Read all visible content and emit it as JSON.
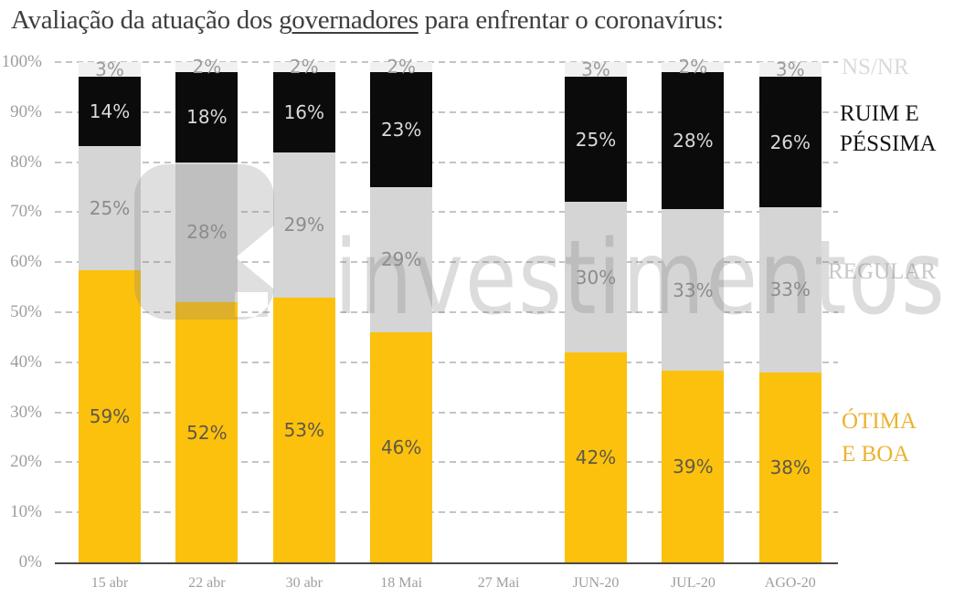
{
  "title": {
    "prefix": "Avaliação da atuação dos ",
    "highlight": "governadores",
    "suffix": " para enfrentar o coronavírus:"
  },
  "watermark": {
    "text": "investimentos",
    "logo": "play-back-rounded-square"
  },
  "chart_data": {
    "type": "bar",
    "stacked": true,
    "title": "Avaliação da atuação dos governadores para enfrentar o coronavírus:",
    "categories": [
      "15 abr",
      "22 abr",
      "30 abr",
      "18 Mai",
      "27 Mai",
      "JUN-20",
      "JUL-20",
      "AGO-20"
    ],
    "series": [
      {
        "name": "ÓTIMA E BOA",
        "color": "#FCC10D",
        "label_color": "#5E584A",
        "values": [
          59,
          52,
          53,
          46,
          null,
          42,
          39,
          38
        ]
      },
      {
        "name": "REGULAR",
        "color": "#D5D5D5",
        "label_color": "#8C8C8C",
        "values": [
          25,
          28,
          29,
          29,
          null,
          30,
          33,
          33
        ]
      },
      {
        "name": "RUIM E PÉSSIMA",
        "color": "#0B0B0B",
        "label_color": "#D9D9D9",
        "values": [
          14,
          18,
          16,
          23,
          null,
          25,
          28,
          26
        ]
      },
      {
        "name": "NS/NR",
        "color": "#F1F1F1",
        "label_color": "#9B9B9B",
        "values": [
          3,
          2,
          2,
          2,
          null,
          3,
          2,
          3
        ]
      }
    ],
    "value_suffix": "%",
    "ylim": [
      0,
      100
    ],
    "yticks": [
      "0%",
      "10%",
      "20%",
      "30%",
      "40%",
      "50%",
      "60%",
      "70%",
      "80%",
      "90%",
      "100%"
    ],
    "grid": "horizontal-dashed",
    "legend_position": "right"
  },
  "legend": {
    "items": [
      {
        "lines": [
          "NS/NR"
        ],
        "color": "#DADADA"
      },
      {
        "lines": [
          "RUIM E",
          "PÉSSIMA"
        ],
        "color": "#141414"
      },
      {
        "lines": [
          "REGULAR"
        ],
        "color": "#C7C7C7"
      },
      {
        "lines": [
          "ÓTIMA",
          "E BOA"
        ],
        "color": "#EBB331"
      }
    ]
  }
}
